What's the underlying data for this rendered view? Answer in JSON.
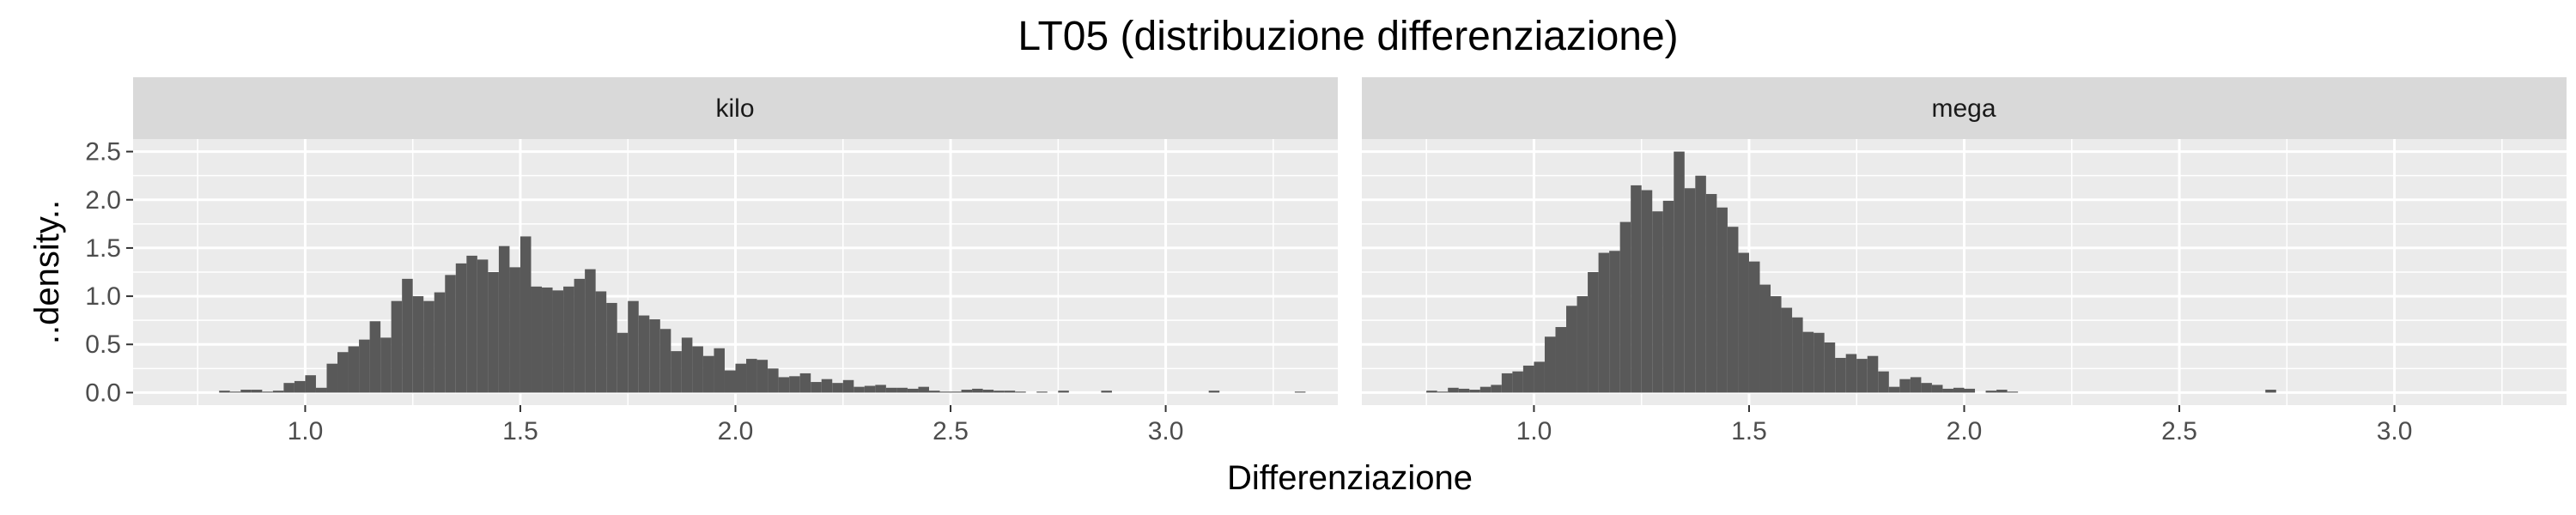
{
  "chart_data": {
    "type": "bar",
    "subtype": "faceted-histogram",
    "title": "LT05 (distribuzione differenziazione)",
    "xlabel": "Differenziazione",
    "ylabel": "..density..",
    "xlim": [
      0.6,
      3.4
    ],
    "ylim": [
      -0.13,
      2.63
    ],
    "x_ticks": [
      1.0,
      1.5,
      2.0,
      2.5,
      3.0
    ],
    "x_tick_labels": [
      "1.0",
      "1.5",
      "2.0",
      "2.5",
      "3.0"
    ],
    "y_ticks": [
      0.0,
      0.5,
      1.0,
      1.5,
      2.0,
      2.5
    ],
    "y_tick_labels": [
      "0.0",
      "0.5",
      "1.0",
      "1.5",
      "2.0",
      "2.5"
    ],
    "grid": true,
    "bar_color": "#595959",
    "panel_background": "#ebebeb",
    "strip_background": "#d9d9d9",
    "gridline_color": "#ffffff",
    "bin_width": 0.025,
    "facets": [
      {
        "label": "kilo",
        "bins_start": 0.8,
        "values": [
          0.02,
          0.01,
          0.03,
          0.03,
          0.01,
          0.02,
          0.1,
          0.12,
          0.18,
          0.05,
          0.3,
          0.42,
          0.48,
          0.55,
          0.74,
          0.57,
          0.95,
          1.18,
          1.0,
          0.95,
          1.04,
          1.22,
          1.34,
          1.42,
          1.38,
          1.25,
          1.52,
          1.3,
          1.62,
          1.1,
          1.09,
          1.06,
          1.1,
          1.18,
          1.28,
          1.05,
          0.93,
          0.62,
          0.95,
          0.8,
          0.76,
          0.66,
          0.43,
          0.57,
          0.48,
          0.38,
          0.46,
          0.23,
          0.3,
          0.35,
          0.34,
          0.25,
          0.16,
          0.17,
          0.2,
          0.11,
          0.14,
          0.1,
          0.13,
          0.06,
          0.07,
          0.08,
          0.05,
          0.05,
          0.04,
          0.06,
          0.02,
          0.01,
          0.01,
          0.03,
          0.04,
          0.03,
          0.02,
          0.02,
          0.01,
          0.0,
          0.01,
          0.0,
          0.02,
          0.0,
          0.0,
          0.0,
          0.02,
          0.0,
          0.0,
          0.0,
          0.0,
          0.0,
          0.0,
          0.0,
          0.0,
          0.0,
          0.02,
          0.0,
          0.0,
          0.0,
          0.0,
          0.0,
          0.0,
          0.0,
          0.01
        ]
      },
      {
        "label": "mega",
        "bins_start": 0.75,
        "values": [
          0.02,
          0.01,
          0.05,
          0.04,
          0.03,
          0.06,
          0.08,
          0.2,
          0.22,
          0.28,
          0.32,
          0.58,
          0.68,
          0.9,
          1.0,
          1.25,
          1.45,
          1.47,
          1.77,
          2.15,
          2.1,
          1.88,
          1.99,
          2.5,
          2.12,
          2.25,
          2.06,
          1.92,
          1.72,
          1.45,
          1.36,
          1.12,
          1.0,
          0.88,
          0.78,
          0.63,
          0.62,
          0.52,
          0.36,
          0.4,
          0.35,
          0.38,
          0.22,
          0.06,
          0.14,
          0.16,
          0.1,
          0.08,
          0.04,
          0.05,
          0.04,
          0.0,
          0.02,
          0.03,
          0.01,
          0.0,
          0.0,
          0.0,
          0.0,
          0.0,
          0.0,
          0.0,
          0.0,
          0.0,
          0.0,
          0.0,
          0.0,
          0.0,
          0.0,
          0.0,
          0.0,
          0.0,
          0.0,
          0.0,
          0.0,
          0.0,
          0.0,
          0.0,
          0.03
        ]
      }
    ]
  }
}
